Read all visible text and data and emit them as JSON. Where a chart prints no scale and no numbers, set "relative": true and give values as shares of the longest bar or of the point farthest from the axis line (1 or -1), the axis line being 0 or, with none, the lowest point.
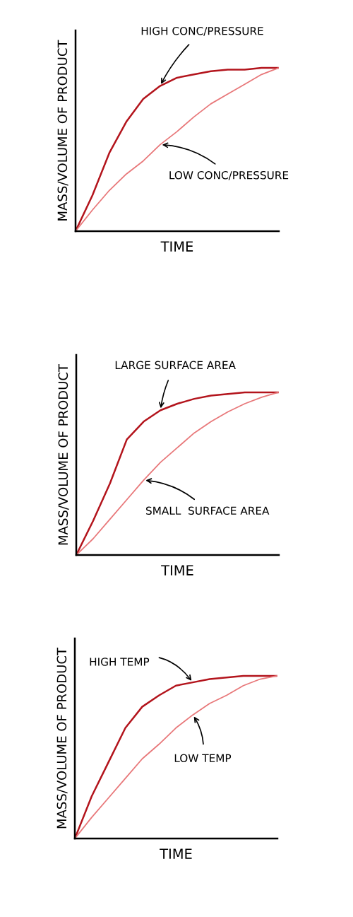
{
  "chart_data": [
    {
      "type": "line",
      "relative": true,
      "xlabel": "TIME",
      "ylabel": "MASS/VOLUME OF PRODUCT",
      "tick_labels": false,
      "categories": [
        null,
        null,
        null,
        null,
        null,
        null,
        null,
        null,
        null,
        null,
        null,
        null,
        null
      ],
      "series": [
        {
          "name": "HIGH CONC/PRESSURE",
          "color": "#b3141c",
          "values": [
            0,
            0.22,
            0.48,
            0.67,
            0.81,
            0.89,
            0.94,
            0.96,
            0.98,
            0.99,
            0.99,
            1.0,
            1.0
          ]
        },
        {
          "name": "LOW CONC/PRESSURE",
          "color": "#e8787a",
          "values": [
            0,
            0.13,
            0.25,
            0.35,
            0.43,
            0.53,
            0.61,
            0.7,
            0.78,
            0.84,
            0.9,
            0.96,
            1.0
          ]
        }
      ]
    },
    {
      "type": "line",
      "relative": true,
      "xlabel": "TIME",
      "ylabel": "MASS/VOLUME OF PRODUCT",
      "tick_labels": false,
      "categories": [
        null,
        null,
        null,
        null,
        null,
        null,
        null,
        null,
        null,
        null,
        null,
        null,
        null
      ],
      "series": [
        {
          "name": "LARGE SURFACE AREA",
          "color": "#b3141c",
          "values": [
            0,
            0.21,
            0.44,
            0.71,
            0.82,
            0.89,
            0.93,
            0.96,
            0.98,
            0.99,
            1.0,
            1.0,
            1.0
          ]
        },
        {
          "name": "SMALL  SURFACE AREA",
          "color": "#e8787a",
          "values": [
            0,
            0.1,
            0.22,
            0.34,
            0.46,
            0.57,
            0.66,
            0.75,
            0.82,
            0.88,
            0.93,
            0.97,
            1.0
          ]
        }
      ]
    },
    {
      "type": "line",
      "relative": true,
      "xlabel": "TIME",
      "ylabel": "MASS/VOLUME OF PRODUCT",
      "tick_labels": false,
      "categories": [
        null,
        null,
        null,
        null,
        null,
        null,
        null,
        null,
        null,
        null,
        null,
        null,
        null
      ],
      "series": [
        {
          "name": "HIGH TEMP",
          "color": "#b3141c",
          "values": [
            0,
            0.26,
            0.47,
            0.68,
            0.81,
            0.88,
            0.94,
            0.96,
            0.98,
            0.99,
            1.0,
            1.0,
            1.0
          ]
        },
        {
          "name": "LOW TEMP",
          "color": "#e8787a",
          "values": [
            0,
            0.13,
            0.25,
            0.37,
            0.49,
            0.58,
            0.68,
            0.76,
            0.83,
            0.88,
            0.94,
            0.98,
            1.0
          ]
        }
      ]
    }
  ]
}
